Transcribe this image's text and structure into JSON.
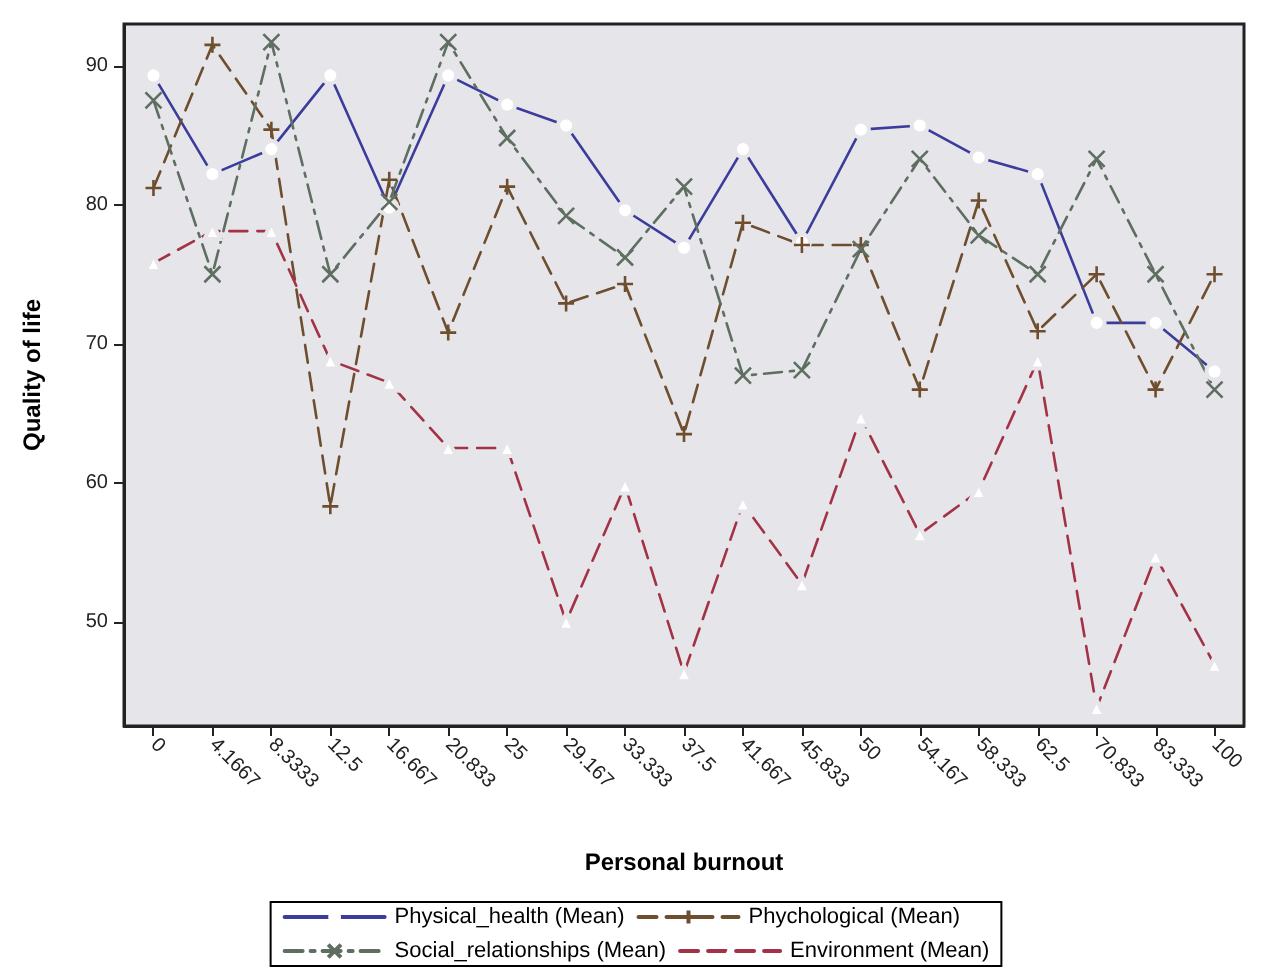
{
  "chart_data": {
    "type": "line",
    "xlabel": "Personal burnout",
    "ylabel": "Quality of life",
    "categories": [
      "0",
      "4.1667",
      "8.3333",
      "12.5",
      "16.667",
      "20.833",
      "25",
      "29.167",
      "33.333",
      "37.5",
      "41.667",
      "45.833",
      "50",
      "54.167",
      "58.333",
      "62.5",
      "70.833",
      "83.333",
      "100"
    ],
    "ylim": [
      42.5,
      93
    ],
    "yticks": [
      50,
      60,
      70,
      80,
      90
    ],
    "grid": false,
    "legend": "bottom",
    "series": [
      {
        "name": "Physical_health (Mean)",
        "color": "#3c3c9c",
        "marker": "circle",
        "line_style": "solid",
        "values": [
          89.3,
          82.2,
          84,
          89.3,
          79.8,
          89.3,
          87.2,
          85.7,
          79.6,
          76.9,
          84,
          77.3,
          85.4,
          85.7,
          83.4,
          82.2,
          71.5,
          71.5,
          68
        ]
      },
      {
        "name": "Phychological (Mean)",
        "color": "#6e4e2e",
        "marker": "cross",
        "line_style": "dashed",
        "values": [
          81.2,
          91.5,
          85.4,
          58.3,
          81.8,
          70.8,
          81.3,
          72.9,
          74.3,
          63.5,
          78.7,
          77.1,
          77.1,
          66.7,
          80.3,
          70.9,
          75,
          66.7,
          75
        ]
      },
      {
        "name": "Social_relationships (Mean)",
        "color": "#5e6e60",
        "marker": "x",
        "line_style": "dashdot",
        "values": [
          87.5,
          75,
          91.7,
          75,
          80.2,
          91.7,
          84.8,
          79.2,
          76.2,
          81.3,
          67.7,
          68.1,
          76.8,
          83.3,
          77.8,
          75,
          83.3,
          75,
          66.7
        ]
      },
      {
        "name": "Environment (Mean)",
        "color": "#a33246",
        "marker": "triangle",
        "line_style": "dashed",
        "values": [
          75.8,
          78.1,
          78.1,
          68.8,
          67.2,
          62.5,
          62.5,
          50,
          59.8,
          46.3,
          58.5,
          52.7,
          64.7,
          56.3,
          59.4,
          68.8,
          43.8,
          54.7,
          46.9
        ]
      }
    ]
  }
}
